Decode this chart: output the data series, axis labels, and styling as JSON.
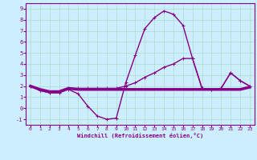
{
  "xlabel": "Windchill (Refroidissement éolien,°C)",
  "bg_color": "#cceeff",
  "grid_color": "#aaddcc",
  "line_color": "#880088",
  "xlim": [
    -0.5,
    23.5
  ],
  "ylim": [
    -1.5,
    9.5
  ],
  "xticks": [
    0,
    1,
    2,
    3,
    4,
    5,
    6,
    7,
    8,
    9,
    10,
    11,
    12,
    13,
    14,
    15,
    16,
    17,
    18,
    19,
    20,
    21,
    22,
    23
  ],
  "yticks": [
    -1,
    0,
    1,
    2,
    3,
    4,
    5,
    6,
    7,
    8,
    9
  ],
  "series": [
    {
      "x": [
        0,
        1,
        2,
        3,
        4,
        5,
        6,
        7,
        8,
        9,
        10,
        11,
        12,
        13,
        14,
        15,
        16,
        17,
        18,
        19,
        20,
        21,
        22,
        23
      ],
      "y": [
        2.0,
        1.7,
        1.5,
        1.5,
        1.8,
        1.7,
        1.7,
        1.7,
        1.7,
        1.7,
        1.7,
        1.7,
        1.7,
        1.7,
        1.7,
        1.7,
        1.7,
        1.7,
        1.7,
        1.7,
        1.7,
        1.7,
        1.7,
        1.9
      ],
      "lw": 2.5,
      "marker": false
    },
    {
      "x": [
        0,
        1,
        2,
        3,
        4,
        5,
        6,
        7,
        8,
        9,
        10,
        11,
        12,
        13,
        14,
        15,
        16,
        17,
        18,
        19,
        20,
        21,
        22,
        23
      ],
      "y": [
        2.0,
        1.6,
        1.4,
        1.4,
        1.7,
        1.3,
        0.2,
        -0.7,
        -1.0,
        -0.9,
        2.3,
        4.8,
        7.2,
        8.2,
        8.8,
        8.5,
        7.5,
        4.5,
        1.8,
        1.7,
        1.8,
        3.2,
        2.5,
        2.0
      ],
      "lw": 1.0,
      "marker": true
    },
    {
      "x": [
        0,
        1,
        2,
        3,
        4,
        5,
        6,
        7,
        8,
        9,
        10,
        11,
        12,
        13,
        14,
        15,
        16,
        17,
        18,
        19,
        20,
        21,
        22,
        23
      ],
      "y": [
        2.0,
        1.6,
        1.4,
        1.4,
        1.8,
        1.8,
        1.8,
        1.8,
        1.8,
        1.8,
        2.0,
        2.3,
        2.8,
        3.2,
        3.7,
        4.0,
        4.5,
        4.5,
        1.8,
        1.7,
        1.8,
        3.2,
        2.5,
        2.0
      ],
      "lw": 1.0,
      "marker": true
    }
  ]
}
